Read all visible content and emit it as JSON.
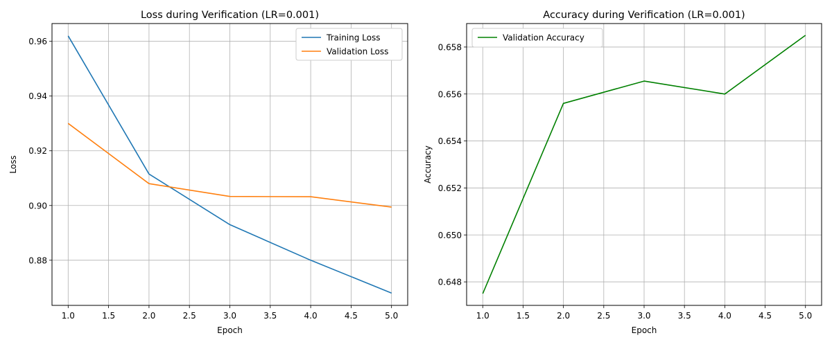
{
  "chart_data": [
    {
      "type": "line",
      "title": "Loss during Verification (LR=0.001)",
      "xlabel": "Epoch",
      "ylabel": "Loss",
      "xlim": [
        0.8,
        5.2
      ],
      "ylim": [
        0.8635,
        0.9665
      ],
      "xticks": [
        1.0,
        1.5,
        2.0,
        2.5,
        3.0,
        3.5,
        4.0,
        4.5,
        5.0
      ],
      "xtick_labels": [
        "1.0",
        "1.5",
        "2.0",
        "2.5",
        "3.0",
        "3.5",
        "4.0",
        "4.5",
        "5.0"
      ],
      "yticks": [
        0.88,
        0.9,
        0.92,
        0.94,
        0.96
      ],
      "ytick_labels": [
        "0.88",
        "0.90",
        "0.92",
        "0.94",
        "0.96"
      ],
      "grid": true,
      "legend": "upper right",
      "x": [
        1,
        2,
        3,
        4,
        5
      ],
      "series": [
        {
          "name": "Training Loss",
          "color": "#1f77b4",
          "values": [
            0.962,
            0.9115,
            0.893,
            0.88,
            0.868
          ]
        },
        {
          "name": "Validation Loss",
          "color": "#ff7f0e",
          "values": [
            0.93,
            0.908,
            0.9033,
            0.9032,
            0.8994
          ]
        }
      ]
    },
    {
      "type": "line",
      "title": "Accuracy during Verification (LR=0.001)",
      "xlabel": "Epoch",
      "ylabel": "Accuracy",
      "xlim": [
        0.8,
        5.2
      ],
      "ylim": [
        0.647,
        0.659
      ],
      "xticks": [
        1.0,
        1.5,
        2.0,
        2.5,
        3.0,
        3.5,
        4.0,
        4.5,
        5.0
      ],
      "xtick_labels": [
        "1.0",
        "1.5",
        "2.0",
        "2.5",
        "3.0",
        "3.5",
        "4.0",
        "4.5",
        "5.0"
      ],
      "yticks": [
        0.648,
        0.65,
        0.652,
        0.654,
        0.656,
        0.658
      ],
      "ytick_labels": [
        "0.648",
        "0.650",
        "0.652",
        "0.654",
        "0.656",
        "0.658"
      ],
      "grid": true,
      "legend": "upper left",
      "x": [
        1,
        2,
        3,
        4,
        5
      ],
      "series": [
        {
          "name": "Validation Accuracy",
          "color": "#008000",
          "values": [
            0.6475,
            0.6556,
            0.65655,
            0.656,
            0.6585
          ]
        }
      ]
    }
  ]
}
